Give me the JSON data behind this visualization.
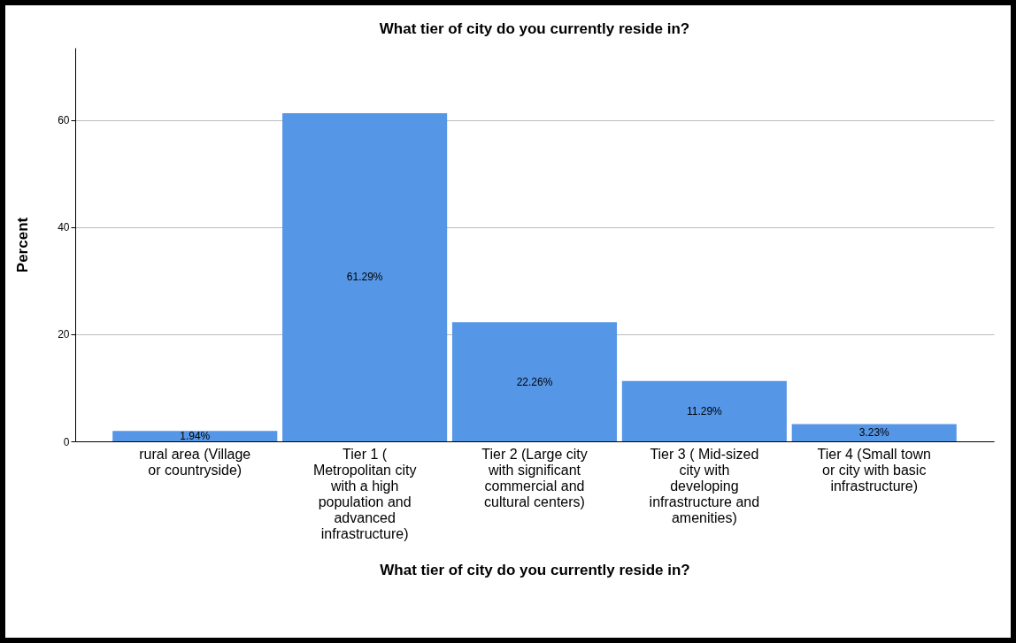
{
  "chart_data": {
    "type": "bar",
    "title": "What tier of city do you currently reside in?",
    "xlabel": "What tier of city do you currently reside in?",
    "ylabel": "Percent",
    "categories": [
      "rural area (Village or countryside)",
      "Tier 1 ( Metropolitan city with a high population and advanced infrastructure)",
      "Tier 2 (Large city with significant commercial and cultural centers)",
      "Tier 3 ( Mid-sized city with developing infrastructure and amenities)",
      "Tier 4 (Small town or city with basic infrastructure)"
    ],
    "values": [
      1.94,
      61.29,
      22.26,
      11.29,
      3.23
    ],
    "value_labels": [
      "1.94%",
      "61.29%",
      "22.26%",
      "11.29%",
      "3.23%"
    ],
    "color": "#5596e6",
    "ylim": [
      0,
      73.5
    ],
    "yticks": [
      0,
      20,
      40,
      60
    ],
    "grid": "y"
  }
}
